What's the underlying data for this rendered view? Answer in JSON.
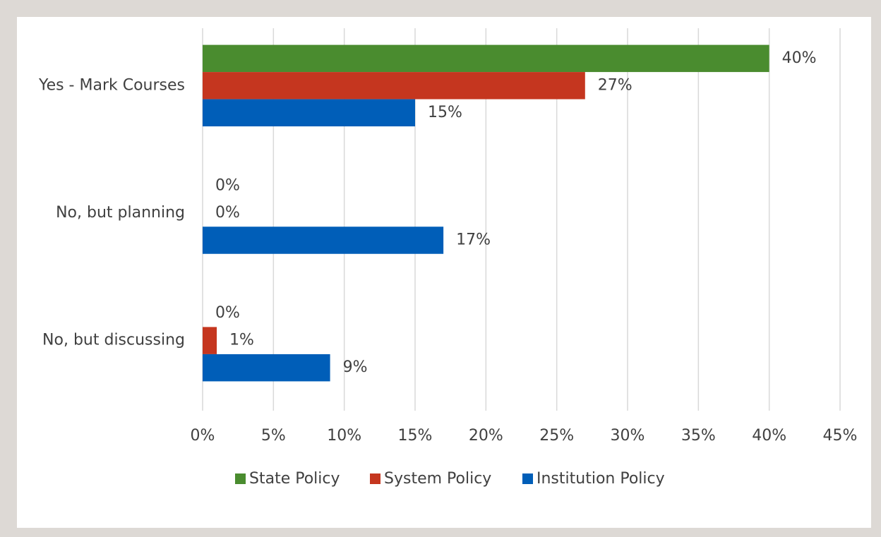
{
  "chart_data": {
    "type": "bar",
    "orientation": "horizontal",
    "categories": [
      "Yes - Mark Courses",
      "No, but planning",
      "No, but discussing"
    ],
    "series": [
      {
        "name": "State Policy",
        "color": "#4a8c2f",
        "values": [
          40,
          0,
          0
        ],
        "value_labels": [
          "40%",
          "0%",
          "0%"
        ]
      },
      {
        "name": "System Policy",
        "color": "#c5361f",
        "values": [
          27,
          0,
          1
        ],
        "value_labels": [
          "27%",
          "0%",
          "1%"
        ]
      },
      {
        "name": "Institution Policy",
        "color": "#005eb8",
        "values": [
          15,
          17,
          9
        ],
        "value_labels": [
          "15%",
          "17%",
          "9%"
        ]
      }
    ],
    "xlim": [
      0,
      45
    ],
    "xticks": [
      {
        "value": 0,
        "label": "0%"
      },
      {
        "value": 5,
        "label": "5%"
      },
      {
        "value": 10,
        "label": "10%"
      },
      {
        "value": 15,
        "label": "15%"
      },
      {
        "value": 20,
        "label": "20%"
      },
      {
        "value": 25,
        "label": "25%"
      },
      {
        "value": 30,
        "label": "30%"
      },
      {
        "value": 35,
        "label": "35%"
      },
      {
        "value": 40,
        "label": "40%"
      },
      {
        "value": 45,
        "label": "45%"
      }
    ],
    "grid": true,
    "legend": "bottom"
  }
}
